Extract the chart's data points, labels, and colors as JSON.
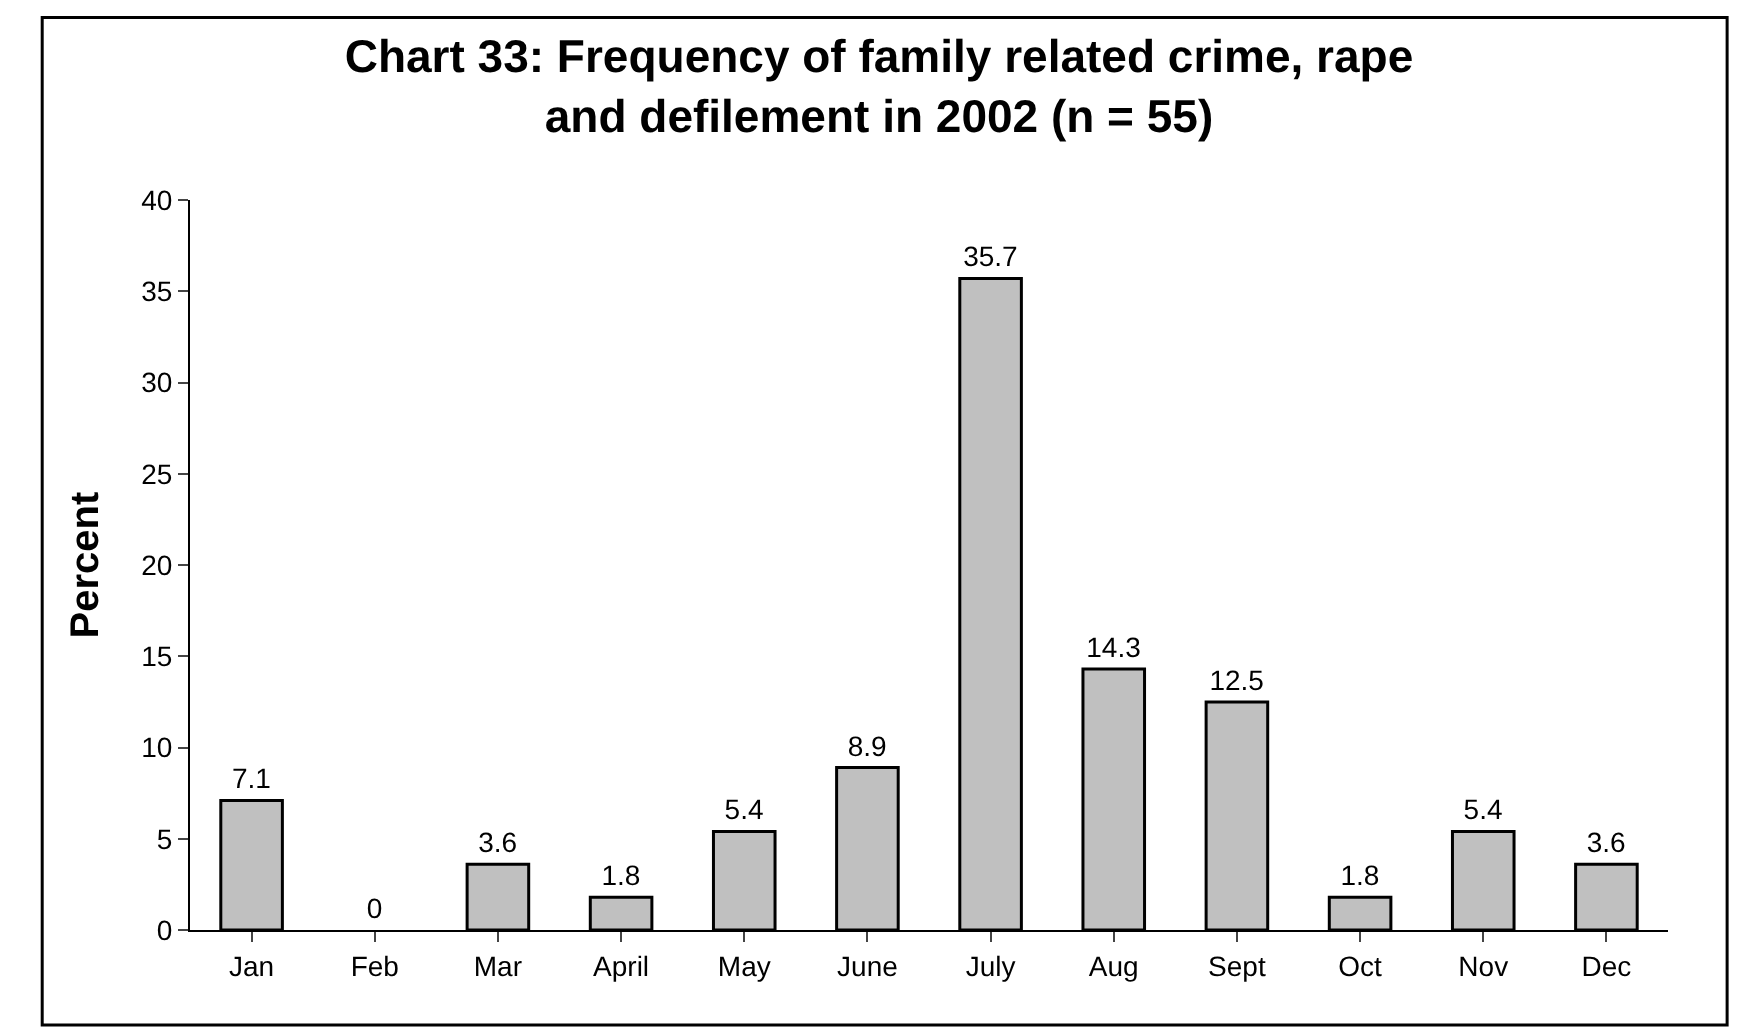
{
  "chart_data": {
    "type": "bar",
    "title": "Chart 33: Frequency of family related crime, rape\nand defilement in 2002 (n = 55)",
    "ylabel": "Percent",
    "categories": [
      "Jan",
      "Feb",
      "Mar",
      "April",
      "May",
      "June",
      "July",
      "Aug",
      "Sept",
      "Oct",
      "Nov",
      "Dec"
    ],
    "values": [
      7.1,
      0,
      3.6,
      1.8,
      5.4,
      8.9,
      35.7,
      14.3,
      12.5,
      1.8,
      5.4,
      3.6
    ],
    "color": "#c0c0c0",
    "ylim": [
      0,
      40
    ],
    "yticks": [
      0,
      5,
      10,
      15,
      20,
      25,
      30,
      35,
      40
    ],
    "data_labels": true
  }
}
